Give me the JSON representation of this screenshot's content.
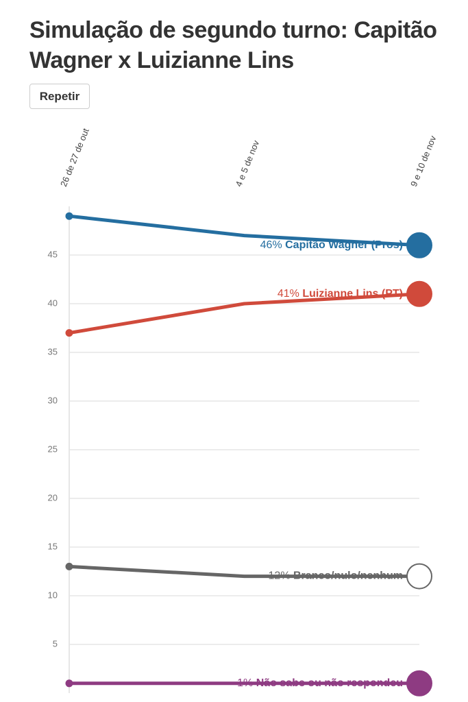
{
  "chart_data": {
    "type": "line",
    "title": "Simulação de segundo turno: Capitão Wagner x Luizianne Lins",
    "button": "Repetir",
    "categories": [
      "26 de 27 de out",
      "4 e 5 de nov",
      "9 e 10 de nov"
    ],
    "ylim": [
      0,
      50
    ],
    "yticks": [
      5,
      10,
      15,
      20,
      25,
      30,
      35,
      40,
      45
    ],
    "grid": true,
    "series": [
      {
        "name": "Capitão Wagner (Pros)",
        "color": "#246ea0",
        "values": [
          49,
          47,
          46
        ],
        "value_labels": [
          null,
          null,
          "46%"
        ]
      },
      {
        "name": "Luizianne Lins (PT)",
        "color": "#d04a3b",
        "values": [
          37,
          40,
          41
        ],
        "value_labels": [
          null,
          null,
          "41%"
        ]
      },
      {
        "name": "Branco/nulo/nenhum",
        "color": "#666666",
        "values": [
          13,
          12,
          12
        ],
        "value_labels": [
          null,
          null,
          "12%"
        ]
      },
      {
        "name": "Não sabe ou não respondeu",
        "color": "#8e3b82",
        "values": [
          1,
          1,
          1
        ],
        "value_labels": [
          null,
          null,
          "1%"
        ]
      }
    ]
  }
}
